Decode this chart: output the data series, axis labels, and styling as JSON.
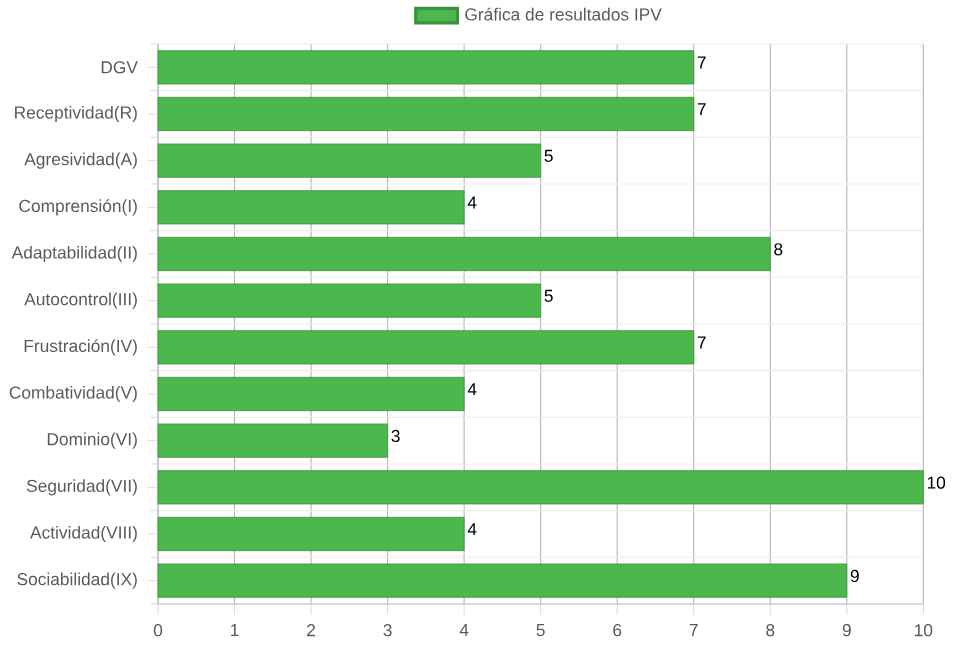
{
  "chart_data": {
    "type": "bar",
    "orientation": "horizontal",
    "categories": [
      "DGV",
      "Receptividad(R)",
      "Agresividad(A)",
      "Comprensión(I)",
      "Adaptabilidad(II)",
      "Autocontrol(III)",
      "Frustración(IV)",
      "Combatividad(V)",
      "Dominio(VI)",
      "Seguridad(VII)",
      "Actividad(VIII)",
      "Sociabilidad(IX)"
    ],
    "series": [
      {
        "name": "Gráfica de resultados IPV",
        "color": "#4cb74c",
        "values": [
          7,
          7,
          5,
          4,
          8,
          5,
          7,
          4,
          3,
          10,
          4,
          9
        ]
      }
    ],
    "xlim": [
      0,
      10
    ],
    "xticks": [
      0,
      1,
      2,
      3,
      4,
      5,
      6,
      7,
      8,
      9,
      10
    ],
    "grid": true,
    "legend": "top",
    "data_labels": true
  }
}
